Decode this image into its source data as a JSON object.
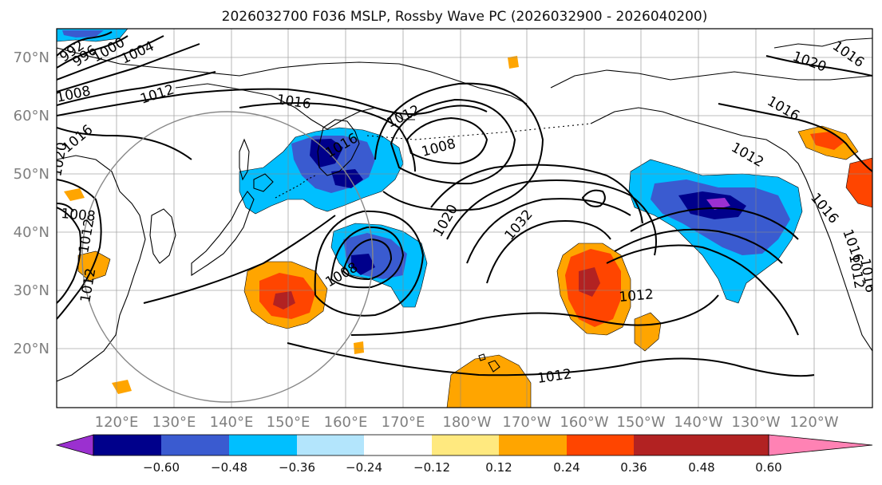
{
  "title": "2026032700 F036 MSLP, Rossby Wave PC (2026032900 - 2026040200)",
  "latitude_labels": [
    "70°N",
    "60°N",
    "50°N",
    "40°N",
    "30°N",
    "20°N"
  ],
  "longitude_labels": [
    "120°E",
    "130°E",
    "140°E",
    "150°E",
    "160°E",
    "170°E",
    "180°W",
    "170°W",
    "160°W",
    "150°W",
    "140°W",
    "130°W",
    "120°W"
  ],
  "colorbar": {
    "ticks": [
      "−0.60",
      "−0.48",
      "−0.36",
      "−0.24",
      "−0.12",
      "0.12",
      "0.24",
      "0.36",
      "0.48",
      "0.60"
    ],
    "colors": [
      "#9b30d0",
      "#00008b",
      "#3a5bd0",
      "#00bfff",
      "#b3e5fc",
      "#ffffff",
      "#ffe97f",
      "#ffa500",
      "#ff4500",
      "#b22222",
      "#ff82b4"
    ]
  },
  "isobar_labels": [
    "992",
    "996",
    "1000",
    "1004",
    "1008",
    "1012",
    "1016",
    "1012",
    "1008",
    "1016",
    "1020",
    "1032",
    "1012",
    "1012",
    "1008",
    "1020",
    "1016",
    "1012",
    "1016",
    "1008",
    "1012",
    "1012",
    "1016",
    "1020",
    "1016",
    "1016",
    "1012",
    "1016"
  ],
  "colors": {
    "isobar": "#000000",
    "grid": "#888888",
    "coast": "#000000",
    "axis_text": "#7f7f7f"
  }
}
